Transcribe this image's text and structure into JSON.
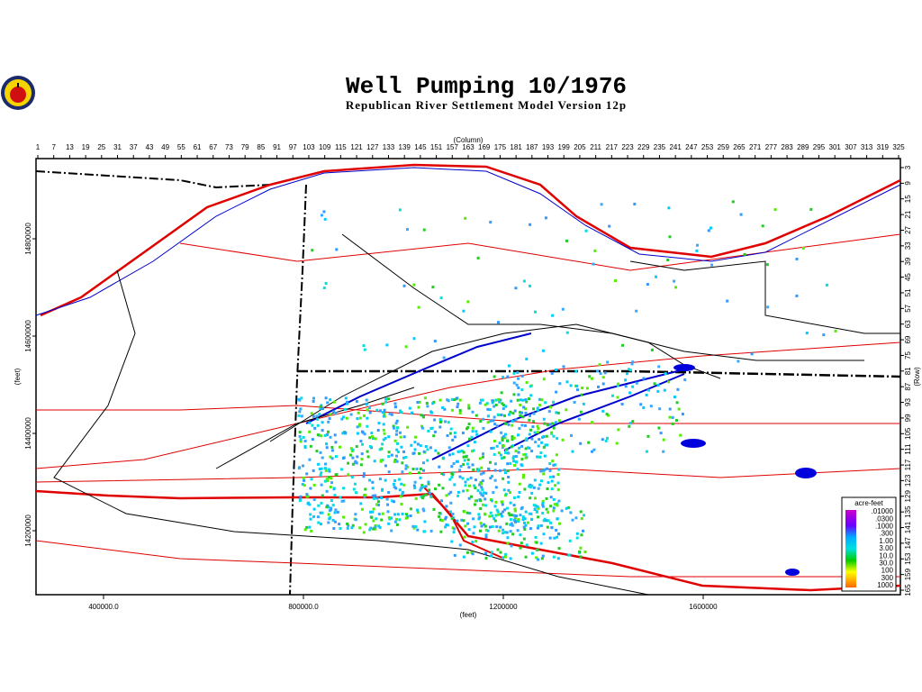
{
  "header": {
    "title": "Well Pumping 10/1976",
    "subtitle": "Republican River Settlement Model Version 12p"
  },
  "axes": {
    "column_label": "(Column)",
    "row_label": "(Row)",
    "x_label": "(feet)",
    "y_label": "(feet)",
    "column_ticks": [
      1,
      7,
      13,
      19,
      25,
      31,
      37,
      43,
      49,
      55,
      61,
      67,
      73,
      79,
      85,
      91,
      97,
      103,
      109,
      115,
      121,
      127,
      133,
      139,
      145,
      151,
      157,
      163,
      169,
      175,
      181,
      187,
      193,
      199,
      205,
      211,
      217,
      223,
      229,
      235,
      241,
      247,
      253,
      259,
      265,
      271,
      277,
      283,
      289,
      295,
      301,
      307,
      313,
      319,
      325
    ],
    "row_ticks": [
      3,
      9,
      15,
      21,
      27,
      33,
      39,
      45,
      51,
      57,
      63,
      69,
      75,
      81,
      87,
      93,
      99,
      105,
      111,
      117,
      123,
      129,
      135,
      141,
      147,
      153,
      159,
      165
    ],
    "x_ticks": [
      "400000.0",
      "800000.0",
      "1200000",
      "1600000"
    ],
    "y_ticks": [
      "14800000",
      "14600000",
      "14400000",
      "14200000"
    ]
  },
  "legend": {
    "title": "acre-feet",
    "labels": [
      ".01000",
      ".0300",
      ".1000",
      ".300",
      "1.00",
      "3.00",
      "10.0",
      "30.0",
      "100",
      "300",
      "1000"
    ]
  }
}
